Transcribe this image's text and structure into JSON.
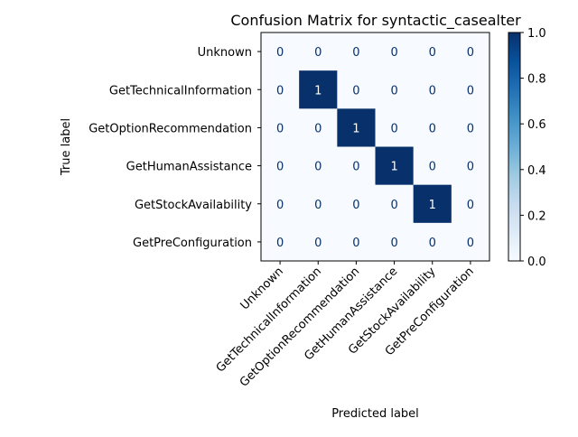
{
  "chart_data": {
    "type": "heatmap",
    "title": "Confusion Matrix for syntactic_casealter",
    "xlabel": "Predicted label",
    "ylabel": "True label",
    "row_labels": [
      "Unknown",
      "GetTechnicalInformation",
      "GetOptionRecommendation",
      "GetHumanAssistance",
      "GetStockAvailability",
      "GetPreConfiguration"
    ],
    "col_labels": [
      "Unknown",
      "GetTechnicalInformation",
      "GetOptionRecommendation",
      "GetHumanAssistance",
      "GetStockAvailability",
      "GetPreConfiguration"
    ],
    "values": [
      [
        0,
        0,
        0,
        0,
        0,
        0
      ],
      [
        0,
        1,
        0,
        0,
        0,
        0
      ],
      [
        0,
        0,
        1,
        0,
        0,
        0
      ],
      [
        0,
        0,
        0,
        1,
        0,
        0
      ],
      [
        0,
        0,
        0,
        0,
        1,
        0
      ],
      [
        0,
        0,
        0,
        0,
        0,
        0
      ]
    ],
    "colormap": "Blues",
    "colorbar": {
      "range": [
        0.0,
        1.0
      ],
      "ticks": [
        "0.0",
        "0.2",
        "0.4",
        "0.6",
        "0.8",
        "1.0"
      ]
    },
    "colors": {
      "low": "#f7fbff",
      "high": "#08306b",
      "text_on_low": "#08306b",
      "text_on_high": "#ffffff"
    }
  }
}
